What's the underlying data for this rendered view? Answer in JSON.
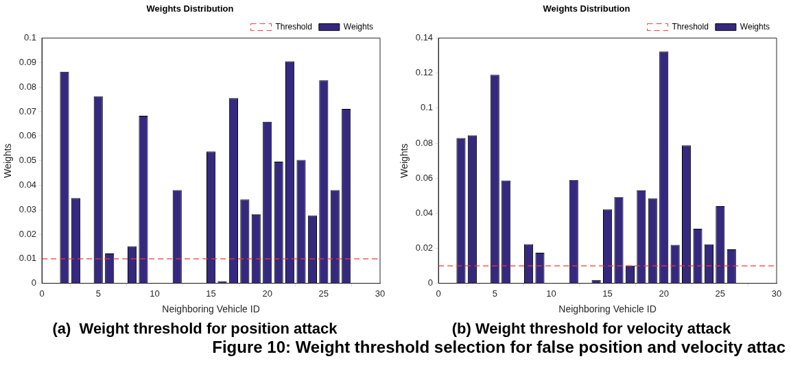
{
  "chart_data": [
    {
      "type": "bar",
      "title": "Weights Distribution",
      "xlabel": "Neighboring Vehicle ID",
      "ylabel": "Weights",
      "x": [
        2,
        3,
        5,
        6,
        8,
        9,
        12,
        15,
        16,
        17,
        18,
        19,
        20,
        21,
        22,
        23,
        24,
        25,
        26,
        27
      ],
      "series": [
        {
          "name": "Weights",
          "color": "#35297f",
          "values": [
            0.0863,
            0.0347,
            0.0763,
            0.0122,
            0.0151,
            0.0683,
            0.038,
            0.0537,
            0.0009,
            0.0755,
            0.0342,
            0.0282,
            0.0659,
            0.0496,
            0.0905,
            0.0503,
            0.0277,
            0.0828,
            0.038,
            0.0711
          ]
        }
      ],
      "ref_lines": [
        {
          "axis": "y",
          "value": 0.01,
          "label": "Threshold",
          "color": "#ff3333",
          "line_style": "dashed"
        }
      ],
      "xlim": [
        0,
        30
      ],
      "xticks": [
        0,
        5,
        10,
        15,
        20,
        25,
        30
      ],
      "ylim": [
        0,
        0.1
      ],
      "yticks": [
        0,
        0.01,
        0.02,
        0.03,
        0.04,
        0.05,
        0.06,
        0.07,
        0.08,
        0.09,
        0.1
      ],
      "grid": false,
      "legend": "top right",
      "annotations": [
        "(a)  Weight threshold for position attack"
      ]
    },
    {
      "type": "bar",
      "title": "Weights Distribution",
      "xlabel": "Neighboring Vehicle ID",
      "ylabel": "Weights",
      "x": [
        2,
        3,
        5,
        6,
        8,
        9,
        12,
        14,
        15,
        16,
        17,
        18,
        19,
        20,
        21,
        22,
        23,
        24,
        25,
        26
      ],
      "series": [
        {
          "name": "Weights",
          "color": "#35297f",
          "values": [
            0.0829,
            0.0845,
            0.119,
            0.0587,
            0.0223,
            0.0174,
            0.059,
            0.0019,
            0.0423,
            0.0492,
            0.0101,
            0.0531,
            0.0485,
            0.1323,
            0.0219,
            0.0787,
            0.0311,
            0.0222,
            0.044,
            0.0194
          ]
        }
      ],
      "ref_lines": [
        {
          "axis": "y",
          "value": 0.01,
          "label": "Threshold",
          "color": "#ff3333",
          "line_style": "dashed"
        }
      ],
      "xlim": [
        0,
        30
      ],
      "xticks": [
        0,
        5,
        10,
        15,
        20,
        25,
        30
      ],
      "ylim": [
        0,
        0.14
      ],
      "yticks": [
        0,
        0.02,
        0.04,
        0.06,
        0.08,
        0.1,
        0.12,
        0.14
      ],
      "grid": false,
      "legend": "top right",
      "annotations": [
        "(b) Weight threshold for velocity attack",
        "Figure 10: Weight threshold selection for false position and velocity attac"
      ]
    }
  ]
}
